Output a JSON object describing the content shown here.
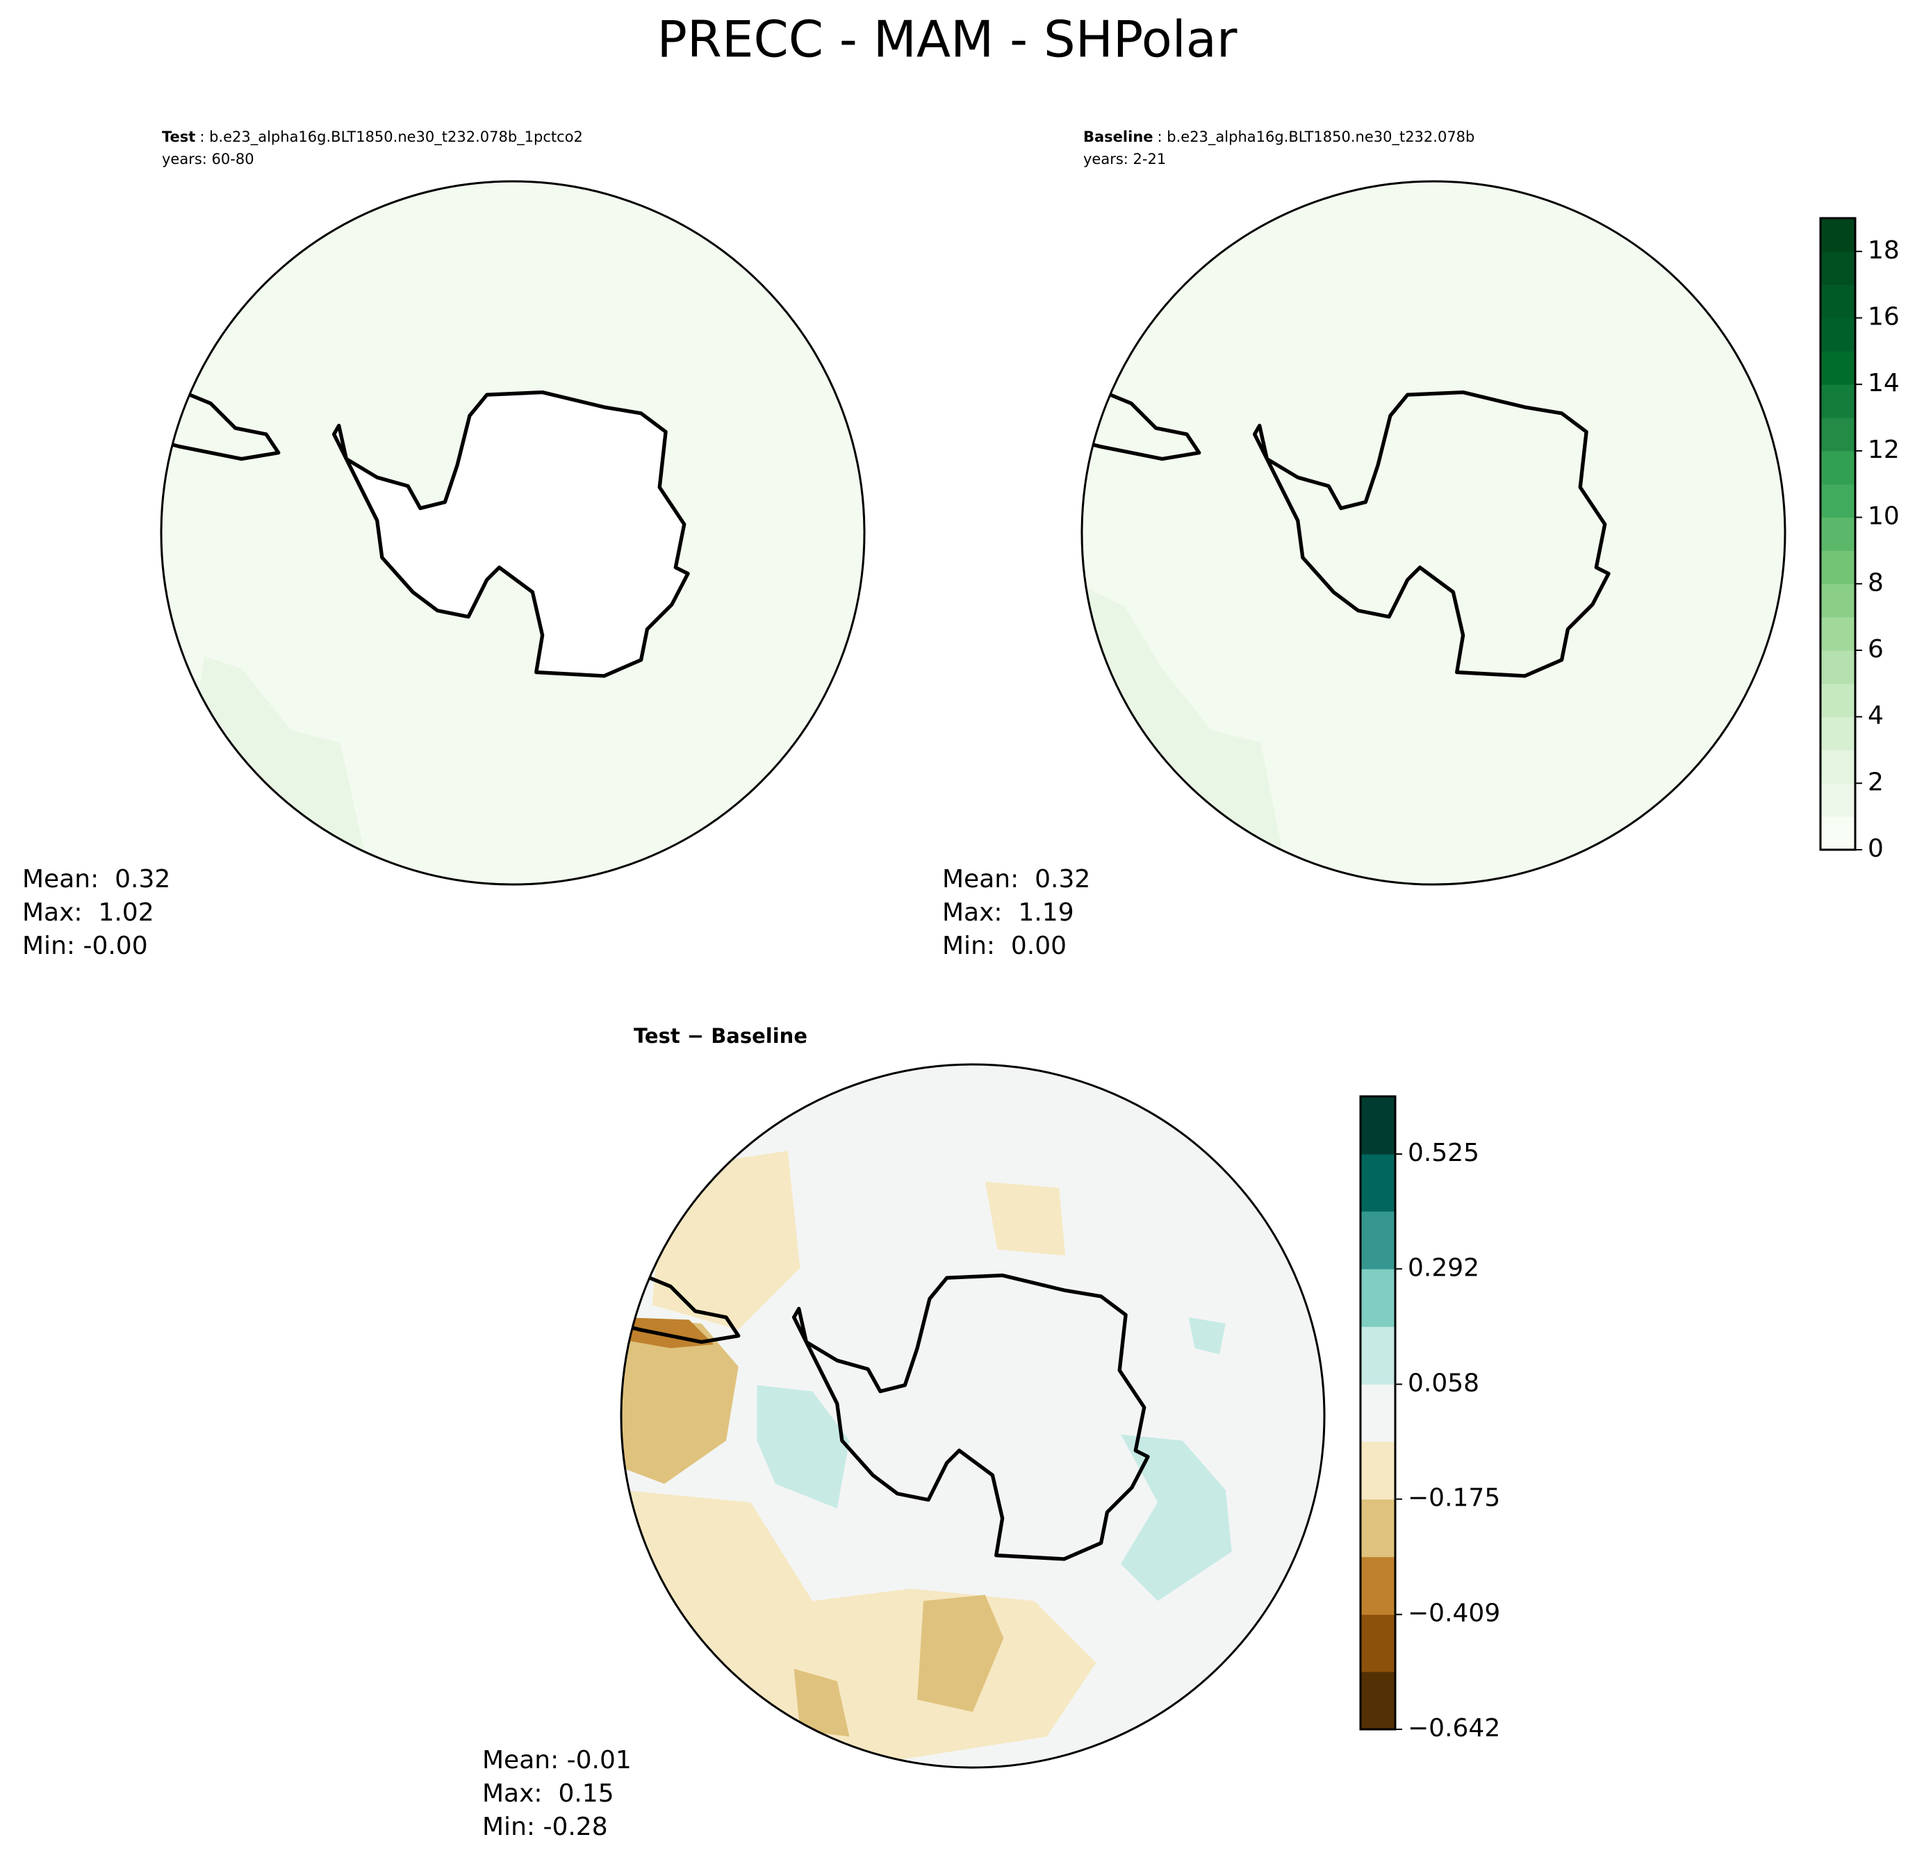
{
  "title": "PRECC - MAM - SHPolar",
  "chart_data": [
    {
      "type": "map",
      "label": "Test",
      "case": ": b.e23_alpha16g.BLT1850.ne30_t232.078b_1pctco2",
      "years": "years: 60-80",
      "stats": [
        "Mean:  0.32",
        "Max:  1.02",
        "Min: -0.00"
      ]
    },
    {
      "type": "map",
      "label": "Baseline",
      "case": ": b.e23_alpha16g.BLT1850.ne30_t232.078b",
      "years": "years: 2-21",
      "stats": [
        "Mean:  0.32",
        "Max:  1.19",
        "Min:  0.00"
      ],
      "colorbar": {
        "ylim": [
          0,
          19
        ],
        "yticks": [
          0,
          2,
          4,
          6,
          8,
          10,
          12,
          14,
          16,
          18
        ],
        "levels": [
          0,
          1,
          2,
          3,
          4,
          5,
          6,
          7,
          8,
          9,
          10,
          11,
          12,
          13,
          14,
          15,
          16,
          17,
          18,
          19
        ],
        "colors": [
          "#f7fcf5",
          "#eef8ea",
          "#e5f5e0",
          "#d6efd0",
          "#c7e9c0",
          "#b4e1ad",
          "#a1d99b",
          "#8ace88",
          "#74c476",
          "#5bb86a",
          "#41ab5d",
          "#32a052",
          "#238b45",
          "#137d3b",
          "#006d2c",
          "#00602a",
          "#005a26",
          "#004f21",
          "#00441b"
        ]
      }
    },
    {
      "type": "map",
      "label": "Test − Baseline",
      "stats": [
        "Mean: -0.01",
        "Max:  0.15",
        "Min: -0.28"
      ],
      "colorbar": {
        "ylim": [
          -0.642,
          0.642
        ],
        "yticks": [
          {
            "value": -0.642,
            "label": "−0.642"
          },
          {
            "value": -0.409,
            "label": "−0.409"
          },
          {
            "value": -0.175,
            "label": "−0.175"
          },
          0.058,
          0.292,
          0.525
        ],
        "levels": [
          -0.642,
          -0.525,
          -0.409,
          -0.292,
          -0.175,
          -0.058,
          0.058,
          0.175,
          0.292,
          0.409,
          0.525,
          0.642
        ],
        "colors": [
          "#543005",
          "#8c510a",
          "#bf812d",
          "#dfc27d",
          "#f6e8c3",
          "#f3f5f4",
          "#c7eae5",
          "#80cdc1",
          "#35978f",
          "#01665e",
          "#003c30"
        ]
      }
    }
  ]
}
